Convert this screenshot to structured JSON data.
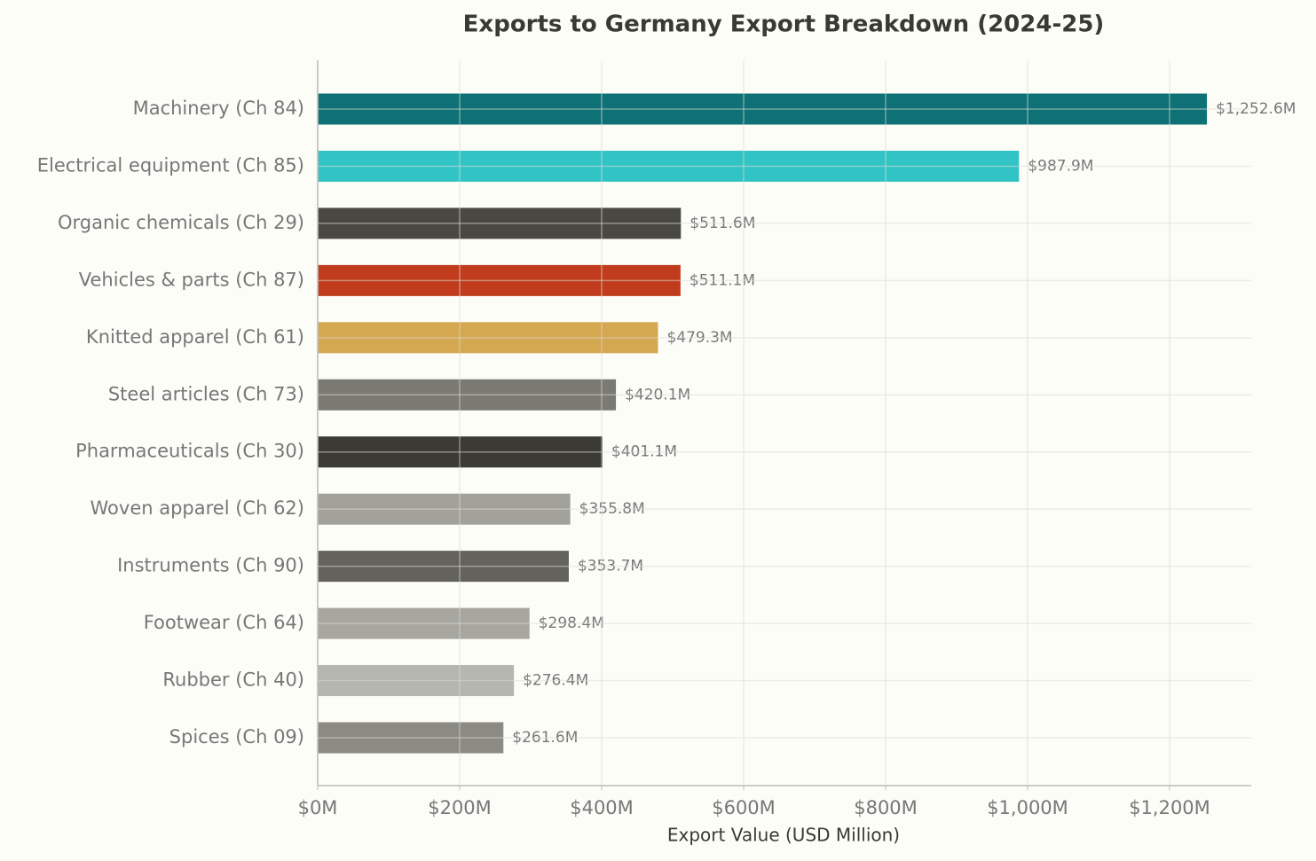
{
  "chart_data": {
    "type": "barh",
    "title": "Exports to Germany Export Breakdown (2024-25)",
    "x_label": "Export Value (USD Million)",
    "categories": [
      "Machinery (Ch 84)",
      "Electrical equipment (Ch 85)",
      "Organic chemicals (Ch 29)",
      "Vehicles & parts (Ch 87)",
      "Knitted apparel (Ch 61)",
      "Steel articles (Ch 73)",
      "Pharmaceuticals (Ch 30)",
      "Woven apparel (Ch 62)",
      "Instruments (Ch 90)",
      "Footwear (Ch 64)",
      "Rubber (Ch 40)",
      "Spices (Ch 09)"
    ],
    "values": [
      1252.6,
      987.9,
      511.6,
      511.1,
      479.3,
      420.1,
      401.1,
      355.8,
      353.7,
      298.4,
      276.4,
      261.6
    ],
    "value_labels": [
      "$1,252.6M",
      "$987.9M",
      "$511.6M",
      "$511.1M",
      "$479.3M",
      "$420.1M",
      "$401.1M",
      "$355.8M",
      "$353.7M",
      "$298.4M",
      "$276.4M",
      "$261.6M"
    ],
    "colors": [
      "#0e7175",
      "#32c3c4",
      "#4a4843",
      "#c03c1c",
      "#d4a751",
      "#7a7a73",
      "#3b3a35",
      "#a2a29b",
      "#63625d",
      "#a7a7a0",
      "#b6b6b0",
      "#8b8b84"
    ],
    "xlim": [
      0,
      1315
    ],
    "xticks": [
      {
        "value": 0,
        "label": "$0M"
      },
      {
        "value": 200,
        "label": "$200M"
      },
      {
        "value": 400,
        "label": "$400M"
      },
      {
        "value": 600,
        "label": "$600M"
      },
      {
        "value": 800,
        "label": "$800M"
      },
      {
        "value": 1000,
        "label": "$1,000M"
      },
      {
        "value": 1200,
        "label": "$1,200M"
      }
    ],
    "grid": true
  }
}
